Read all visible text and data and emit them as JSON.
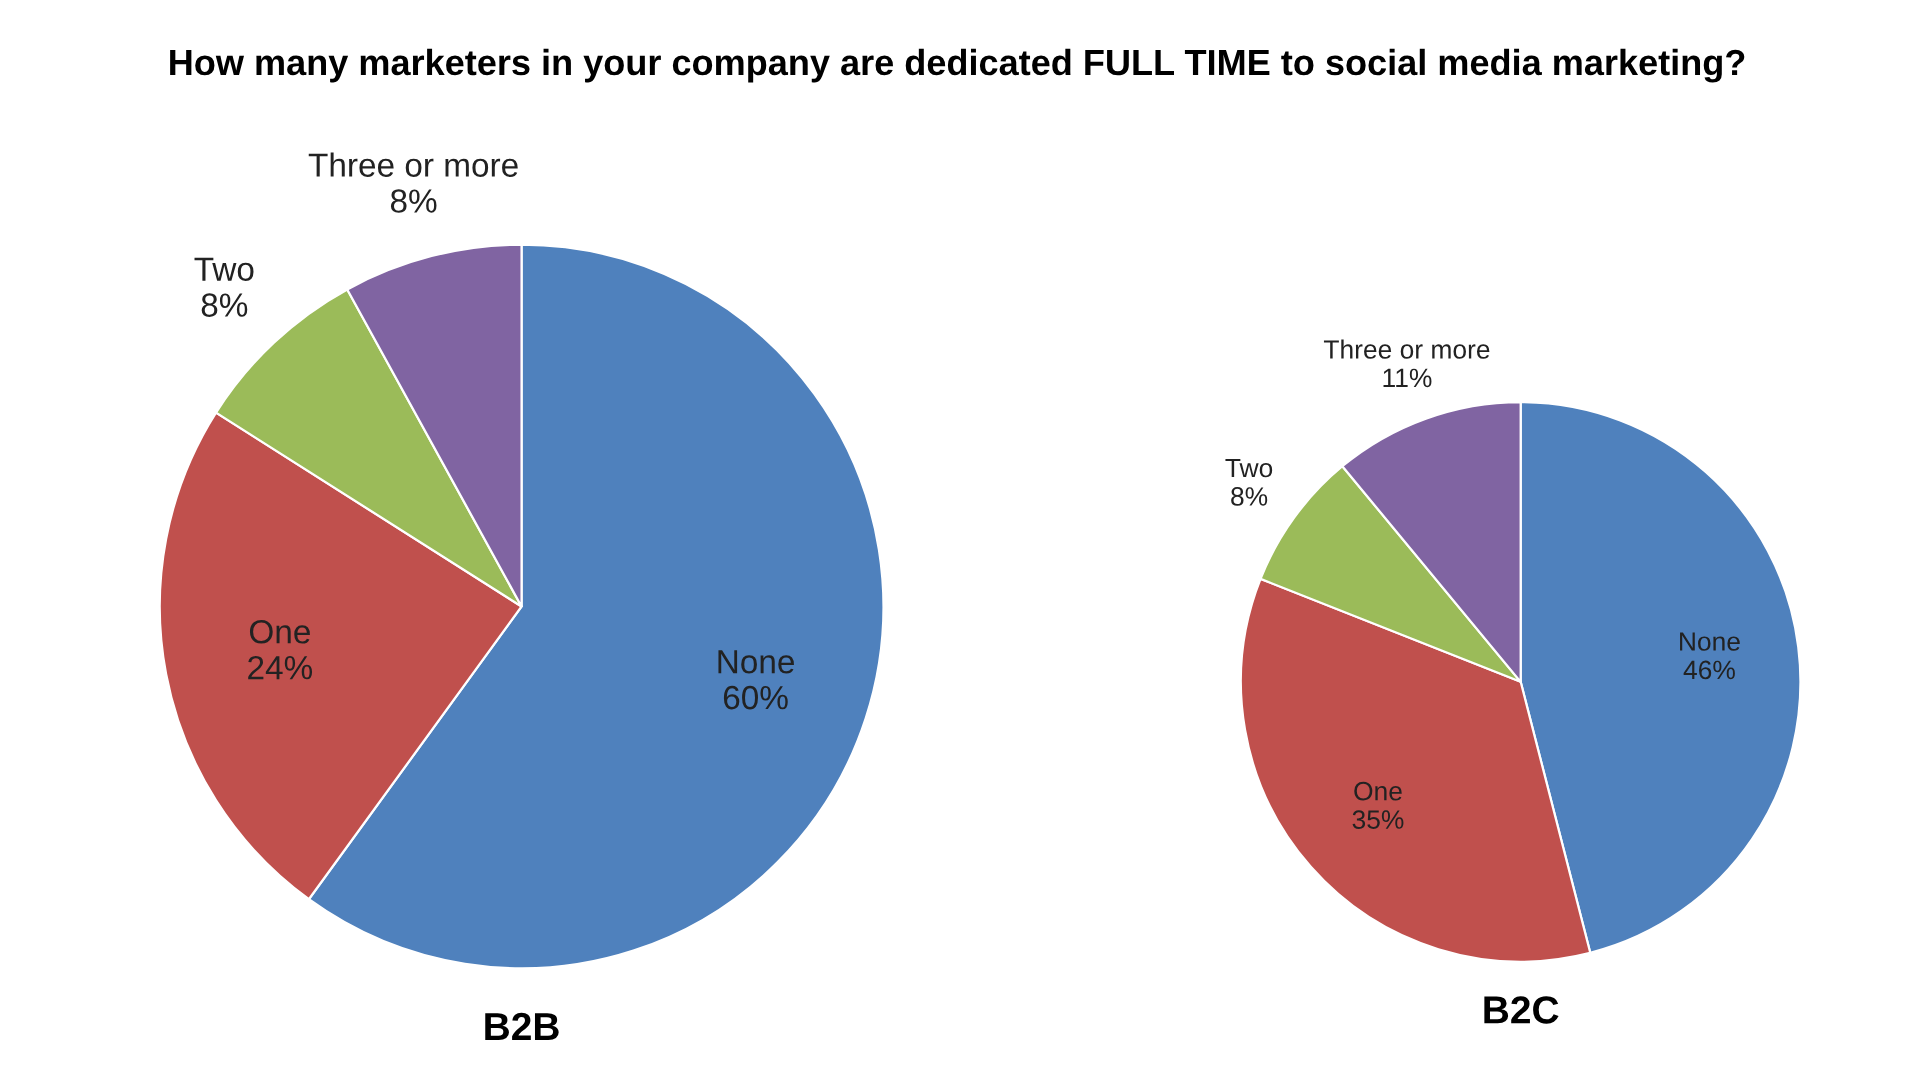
{
  "chart_data": [
    {
      "type": "pie",
      "title": "How many marketers in your company are dedicated FULL TIME to social media marketing?",
      "xlabel": "B2B",
      "categories": [
        "None",
        "One",
        "Two",
        "Three or more"
      ],
      "values": [
        60,
        24,
        8,
        8
      ],
      "value_labels": [
        "60%",
        "24%",
        "8%",
        "8%"
      ],
      "colors": [
        "#4f81bd",
        "#c0504d",
        "#9bbb59",
        "#8064a2"
      ]
    },
    {
      "type": "pie",
      "xlabel": "B2C",
      "categories": [
        "None",
        "One",
        "Two",
        "Three or more"
      ],
      "values": [
        46,
        35,
        8,
        11
      ],
      "value_labels": [
        "46%",
        "35%",
        "8%",
        "11%"
      ],
      "colors": [
        "#4f81bd",
        "#c0504d",
        "#9bbb59",
        "#8064a2"
      ]
    }
  ]
}
